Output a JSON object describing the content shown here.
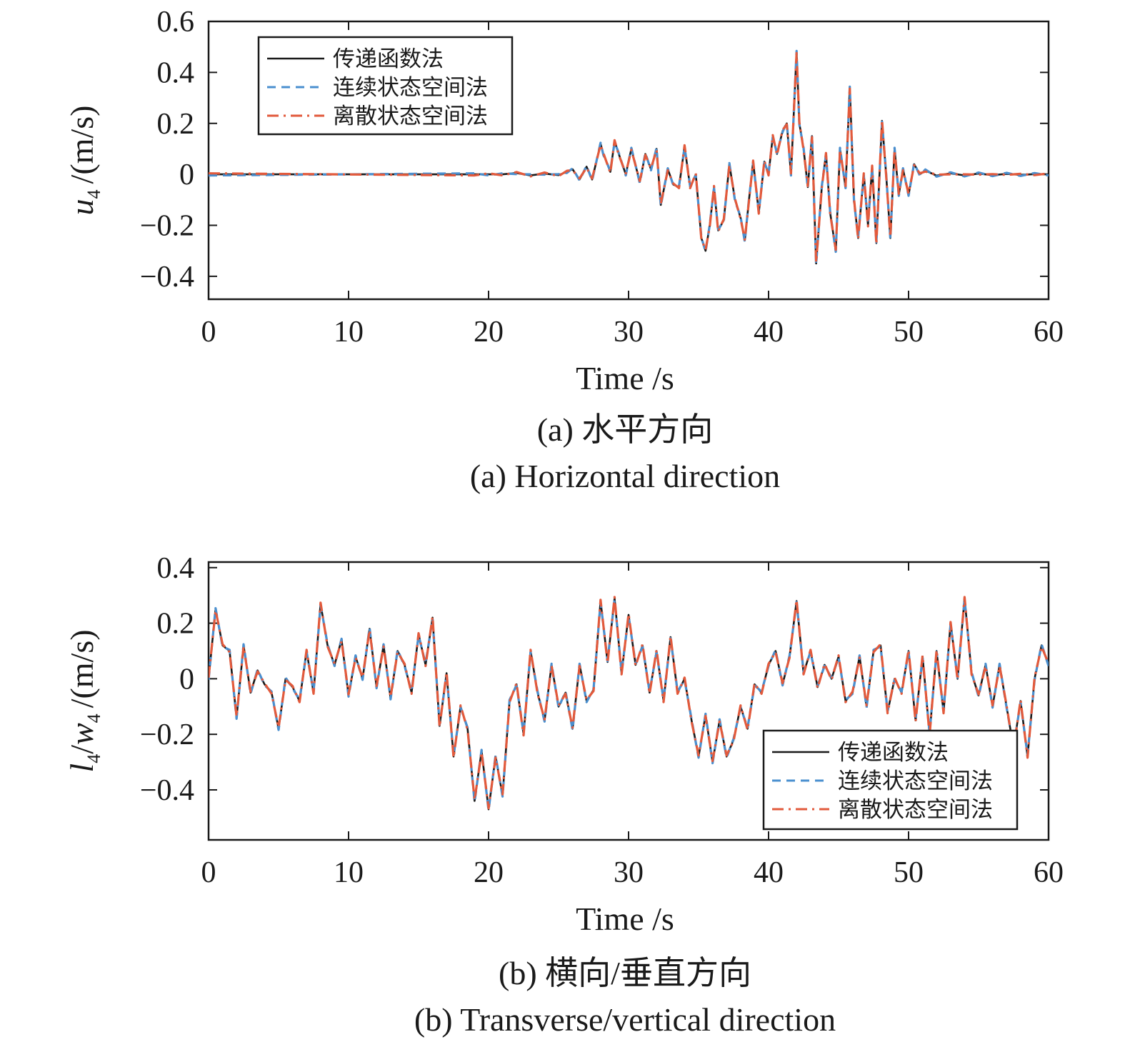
{
  "chart_data": [
    {
      "type": "line",
      "xlabel": "Time /s",
      "ylabel_main": "u",
      "ylabel_sub": "4",
      "ylabel_unit": "/(m/s)",
      "xlim": [
        0,
        60
      ],
      "ylim": [
        -0.49,
        0.6
      ],
      "xticks": [
        0,
        10,
        20,
        30,
        40,
        50,
        60
      ],
      "yticks": [
        0.6,
        0.4,
        0.2,
        0,
        -0.2,
        -0.4
      ],
      "ytick_labels": [
        "0.6",
        "0.4",
        "0.2",
        "0",
        "−0.2",
        "−0.4"
      ],
      "caption_cn": "(a) 水平方向",
      "caption_en": "(a) Horizontal direction",
      "legend_position": "top-left",
      "series": [
        {
          "name": "传递函数法",
          "color": "#1a1a1a",
          "dash": "solid"
        },
        {
          "name": "连续状态空间法",
          "color": "#4a8fcf",
          "dash": "dashed"
        },
        {
          "name": "离散状态空间法",
          "color": "#e25a3c",
          "dash": "dash-dot"
        }
      ],
      "x": [
        0,
        19,
        20,
        21,
        22,
        23,
        24,
        25,
        25.6,
        26,
        26.5,
        27,
        27.4,
        28,
        28.2,
        28.7,
        29,
        29.3,
        29.8,
        30.2,
        30.8,
        31.2,
        31.6,
        32,
        32.3,
        32.8,
        33.2,
        33.6,
        34,
        34.4,
        34.8,
        35.2,
        35.5,
        35.8,
        36.1,
        36.4,
        36.8,
        37.2,
        37.6,
        38,
        38.3,
        38.6,
        38.9,
        39.3,
        39.7,
        40,
        40.3,
        40.6,
        41,
        41.3,
        41.6,
        42,
        42.2,
        42.5,
        42.8,
        43.1,
        43.4,
        43.8,
        44.1,
        44.4,
        44.8,
        45.1,
        45.5,
        45.8,
        46.1,
        46.4,
        46.8,
        47.1,
        47.4,
        47.7,
        48.1,
        48.4,
        48.7,
        49,
        49.3,
        49.6,
        50,
        50.4,
        50.8,
        51.2,
        52,
        53,
        54,
        55,
        56,
        57,
        58,
        59,
        60
      ],
      "y": [
        0,
        0,
        0,
        0,
        0.005,
        -0.004,
        0.003,
        -0.003,
        0.01,
        0.02,
        -0.02,
        0.03,
        -0.02,
        0.12,
        0.08,
        0.01,
        0.13,
        0.08,
        0,
        0.1,
        -0.03,
        0.08,
        0.02,
        0.1,
        -0.12,
        0.02,
        -0.04,
        -0.05,
        0.11,
        -0.05,
        0.0,
        -0.25,
        -0.3,
        -0.2,
        -0.05,
        -0.22,
        -0.18,
        0.04,
        -0.1,
        -0.17,
        -0.26,
        -0.1,
        0.05,
        -0.15,
        0.05,
        0.0,
        0.15,
        0.08,
        0.17,
        0.2,
        0.0,
        0.48,
        0.2,
        0.1,
        -0.05,
        0.15,
        -0.35,
        -0.05,
        0.08,
        -0.15,
        -0.3,
        0.1,
        -0.05,
        0.34,
        -0.1,
        -0.25,
        0.0,
        -0.2,
        0.03,
        -0.27,
        0.21,
        0.0,
        -0.25,
        0.1,
        -0.08,
        0.02,
        -0.08,
        0.04,
        0.0,
        0.015,
        -0.005,
        0.004,
        -0.004,
        0.003,
        -0.003,
        0.002,
        -0.002,
        0.001,
        0
      ]
    },
    {
      "type": "line",
      "xlabel": "Time /s",
      "ylabel_main": "l",
      "ylabel_sub": "4",
      "ylabel_main2": "w",
      "ylabel_sub2": "4",
      "ylabel_unit": "/(m/s)",
      "xlim": [
        0,
        60
      ],
      "ylim": [
        -0.58,
        0.42
      ],
      "xticks": [
        0,
        10,
        20,
        30,
        40,
        50,
        60
      ],
      "yticks": [
        0.4,
        0.2,
        0,
        -0.2,
        -0.4
      ],
      "ytick_labels": [
        "0.4",
        "0.2",
        "0",
        "−0.2",
        "−0.4"
      ],
      "caption_cn": "(b) 横向/垂直方向",
      "caption_en": "(b) Transverse/vertical direction",
      "legend_position": "bottom-right",
      "series": [
        {
          "name": "传递函数法",
          "color": "#1a1a1a",
          "dash": "solid"
        },
        {
          "name": "连续状态空间法",
          "color": "#4a8fcf",
          "dash": "dashed"
        },
        {
          "name": "离散状态空间法",
          "color": "#e25a3c",
          "dash": "dash-dot"
        }
      ],
      "x": [
        0,
        0.5,
        1,
        1.5,
        2,
        2.5,
        3,
        3.5,
        4,
        4.5,
        5,
        5.5,
        6,
        6.5,
        7,
        7.5,
        8,
        8.5,
        9,
        9.5,
        10,
        10.5,
        11,
        11.5,
        12,
        12.5,
        13,
        13.5,
        14,
        14.5,
        15,
        15.5,
        16,
        16.5,
        17,
        17.5,
        18,
        18.5,
        19,
        19.5,
        20,
        20.5,
        21,
        21.5,
        22,
        22.5,
        23,
        23.5,
        24,
        24.5,
        25,
        25.5,
        26,
        26.5,
        27,
        27.5,
        28,
        28.5,
        29,
        29.5,
        30,
        30.5,
        31,
        31.5,
        32,
        32.5,
        33,
        33.5,
        34,
        34.5,
        35,
        35.5,
        36,
        36.5,
        37,
        37.5,
        38,
        38.5,
        39,
        39.5,
        40,
        40.5,
        41,
        41.5,
        42,
        42.5,
        43,
        43.5,
        44,
        44.5,
        45,
        45.5,
        46,
        46.5,
        47,
        47.5,
        48,
        48.5,
        49,
        49.5,
        50,
        50.5,
        51,
        51.5,
        52,
        52.5,
        53,
        53.5,
        54,
        54.5,
        55,
        55.5,
        56,
        56.5,
        57,
        57.5,
        58,
        58.5,
        59,
        59.5,
        60
      ],
      "y": [
        0.0,
        0.25,
        0.12,
        0.1,
        -0.14,
        0.12,
        -0.05,
        0.03,
        -0.02,
        -0.05,
        -0.18,
        0.0,
        -0.03,
        -0.08,
        0.1,
        -0.05,
        0.27,
        0.12,
        0.05,
        0.14,
        -0.06,
        0.08,
        0.0,
        0.18,
        -0.03,
        0.12,
        -0.07,
        0.1,
        0.05,
        -0.05,
        0.16,
        0.05,
        0.22,
        -0.17,
        0.02,
        -0.28,
        -0.1,
        -0.18,
        -0.44,
        -0.26,
        -0.47,
        -0.28,
        -0.42,
        -0.08,
        -0.02,
        -0.2,
        0.1,
        -0.05,
        -0.15,
        0.05,
        -0.1,
        -0.05,
        -0.18,
        0.05,
        -0.08,
        -0.04,
        0.28,
        0.06,
        0.29,
        0.02,
        0.23,
        0.05,
        0.12,
        -0.05,
        0.1,
        -0.08,
        0.15,
        -0.05,
        0.0,
        -0.15,
        -0.28,
        -0.13,
        -0.3,
        -0.15,
        -0.28,
        -0.22,
        -0.1,
        -0.18,
        -0.02,
        -0.05,
        0.05,
        0.1,
        -0.02,
        0.08,
        0.28,
        0.02,
        0.1,
        -0.03,
        0.05,
        0.0,
        0.08,
        -0.08,
        -0.05,
        0.08,
        -0.1,
        0.1,
        0.12,
        -0.12,
        0.0,
        -0.05,
        0.1,
        -0.15,
        0.08,
        -0.2,
        0.1,
        -0.12,
        0.2,
        0.0,
        0.29,
        0.02,
        -0.06,
        0.05,
        -0.1,
        0.05,
        -0.1,
        -0.25,
        -0.08,
        -0.28,
        0.0,
        0.12,
        0.05
      ]
    }
  ]
}
